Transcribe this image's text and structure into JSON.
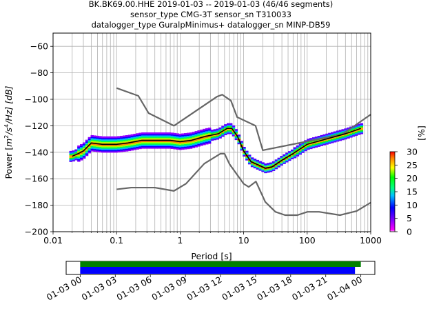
{
  "chart_data": [
    {
      "type": "heatmap",
      "title_lines": [
        "BK.BK69.00.HHE   2019-01-03 -- 2019-01-03  (46/46 segments)",
        "sensor_type CMG-3T sensor_sn T310033",
        "datalogger_type GuralpMinimus+ datalogger_sn MINP-DB59"
      ],
      "xlabel": "Period [s]",
      "ylabel": "Power [m²/s⁴/Hz] [dB]",
      "ylabel_parts": {
        "a": "Power [",
        "m": "m",
        "e2": "2",
        "s": "/s",
        "e4": "4",
        "hz": "/Hz] [dB]"
      },
      "xscale": "log",
      "xlim": [
        0.01,
        1000
      ],
      "ylim": [
        -200,
        -50
      ],
      "grid": true,
      "x_ticks": [
        0.01,
        0.1,
        1,
        10,
        100,
        1000
      ],
      "x_tick_labels": [
        "0.01",
        "0.1",
        "1",
        "10",
        "100",
        "1000"
      ],
      "y_ticks": [
        -200,
        -180,
        -160,
        -140,
        -120,
        -100,
        -80,
        -60
      ],
      "y_tick_labels": [
        "−200",
        "−180",
        "−160",
        "−140",
        "−120",
        "−100",
        "−80",
        "−60"
      ],
      "colorbar": {
        "label": "[%]",
        "ticks": [
          0,
          5,
          10,
          15,
          20,
          25,
          30
        ],
        "tick_labels": [
          "0",
          "5",
          "10",
          "15",
          "20",
          "25",
          "30"
        ],
        "range": [
          0,
          30
        ]
      },
      "series": [
        {
          "name": "NHNM",
          "color": "#666666",
          "x": [
            0.1,
            0.22,
            0.32,
            0.8,
            3.8,
            4.6,
            6.3,
            7.9,
            15.4,
            20,
            354.8,
            1000
          ],
          "y": [
            -91.5,
            -97.4,
            -110.5,
            -120,
            -98,
            -96.5,
            -101,
            -113.5,
            -120,
            -138.5,
            -126.5,
            -111.5
          ]
        },
        {
          "name": "NLNM",
          "color": "#666666",
          "x": [
            0.1,
            0.17,
            0.4,
            0.8,
            1.24,
            2.4,
            4.3,
            5,
            6,
            10,
            12,
            15.6,
            21.9,
            31.6,
            45,
            70,
            101,
            154,
            328,
            600,
            1000
          ],
          "y": [
            -168,
            -166.7,
            -166.7,
            -169.2,
            -163.7,
            -148.6,
            -141.1,
            -141.1,
            -149,
            -163.8,
            -166.2,
            -162.1,
            -177.5,
            -185,
            -187.5,
            -187.5,
            -185,
            -185,
            -187.5,
            -184.4,
            -178
          ]
        },
        {
          "name": "mode",
          "color": "#000000",
          "x": [
            0.02,
            0.025,
            0.03,
            0.04,
            0.06,
            0.1,
            0.15,
            0.25,
            0.4,
            0.7,
            1.0,
            1.5,
            2.5,
            4,
            5.5,
            6.5,
            8,
            10,
            13,
            16,
            22,
            28,
            40,
            60,
            100,
            200,
            400,
            700
          ],
          "y": [
            -143,
            -141,
            -139,
            -133,
            -134,
            -134,
            -133,
            -131,
            -131,
            -131,
            -132,
            -131,
            -128,
            -126,
            -122,
            -122,
            -128,
            -139,
            -147,
            -149,
            -152,
            -151,
            -146,
            -141,
            -134,
            -130,
            -126,
            -122
          ]
        }
      ]
    },
    {
      "type": "timeline",
      "x_tick_labels": [
        "01-03 00",
        "01-03 03",
        "01-03 06",
        "01-03 09",
        "01-03 12",
        "01-03 15",
        "01-03 18",
        "01-03 21",
        "01-04 00"
      ],
      "x_ticks_hours": [
        0,
        3,
        6,
        9,
        12,
        15,
        18,
        21,
        24
      ],
      "xlim_hours": [
        -1.2,
        25.2
      ],
      "bars": [
        {
          "name": "data",
          "color": "#008000",
          "start_hours": 0,
          "end_hours": 24.0
        },
        {
          "name": "psd",
          "color": "#0000ff",
          "start_hours": 0,
          "end_hours": 23.5
        }
      ]
    }
  ]
}
